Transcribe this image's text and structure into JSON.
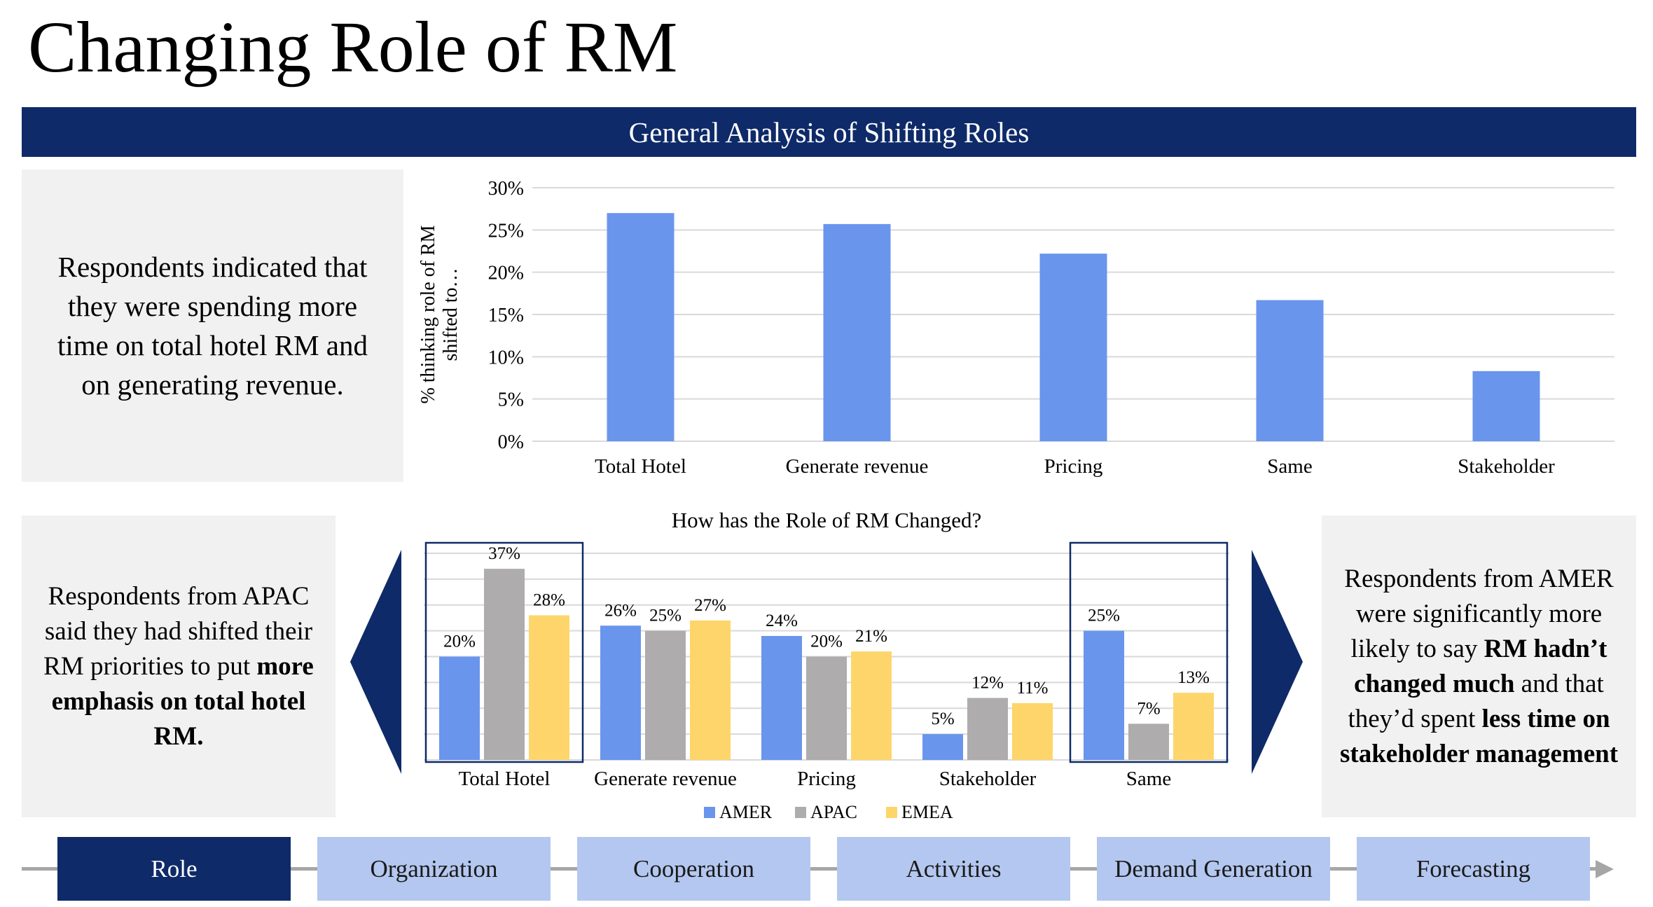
{
  "page_title": "Changing Role of RM",
  "banner_title": "General Analysis of Shifting Roles",
  "top_panel": {
    "text": "Respondents indicated that they were spending more time on total hotel RM and on generating revenue."
  },
  "left_panel": {
    "text_plain": "Respondents from APAC said they had shifted their RM priorities to put",
    "text_bold": "more emphasis on total hotel RM."
  },
  "right_panel": {
    "t1": "Respondents from AMER were significantly more likely to say",
    "b1": "RM hadn’t changed much",
    "t2": "and that they’d spent",
    "b2": "less time on stakeholder management"
  },
  "chart_data": [
    {
      "type": "bar",
      "title": "",
      "ylabel_lines": [
        "% thinking role of RM",
        "shifted to…"
      ],
      "categories": [
        "Total Hotel",
        "Generate revenue",
        "Pricing",
        "Same",
        "Stakeholder"
      ],
      "values": [
        0.27,
        0.257,
        0.222,
        0.167,
        0.083
      ],
      "ylim": [
        0,
        0.3
      ],
      "yticks": [
        "0%",
        "5%",
        "10%",
        "15%",
        "20%",
        "25%",
        "30%"
      ],
      "grid": true,
      "color": "#6a95ed"
    },
    {
      "type": "bar",
      "title": "How has the Role of RM Changed?",
      "categories": [
        "Total Hotel",
        "Generate revenue",
        "Pricing",
        "Stakeholder",
        "Same"
      ],
      "series": [
        {
          "name": "AMER",
          "values": [
            0.2,
            0.26,
            0.24,
            0.05,
            0.25
          ],
          "labels": [
            "20%",
            "26%",
            "24%",
            "5%",
            "25%"
          ],
          "color": "#6a95ed"
        },
        {
          "name": "APAC",
          "values": [
            0.37,
            0.25,
            0.2,
            0.12,
            0.07
          ],
          "labels": [
            "37%",
            "25%",
            "20%",
            "12%",
            "7%"
          ],
          "color": "#aeacac"
        },
        {
          "name": "EMEA",
          "values": [
            0.28,
            0.27,
            0.21,
            0.11,
            0.13
          ],
          "labels": [
            "28%",
            "27%",
            "21%",
            "11%",
            "13%"
          ],
          "color": "#fdd56b"
        }
      ],
      "ylim": [
        0,
        0.4
      ],
      "grid": true,
      "legend": "bottom",
      "highlighted_categories": [
        "Total Hotel",
        "Same"
      ]
    }
  ],
  "nav": {
    "tabs": [
      "Role",
      "Organization",
      "Cooperation",
      "Activities",
      "Demand Generation",
      "Forecasting"
    ],
    "active": "Role"
  },
  "colors": {
    "navy": "#0e2a68",
    "tab_light": "#b4c7f0",
    "panel_gray": "#f1f1f1"
  }
}
